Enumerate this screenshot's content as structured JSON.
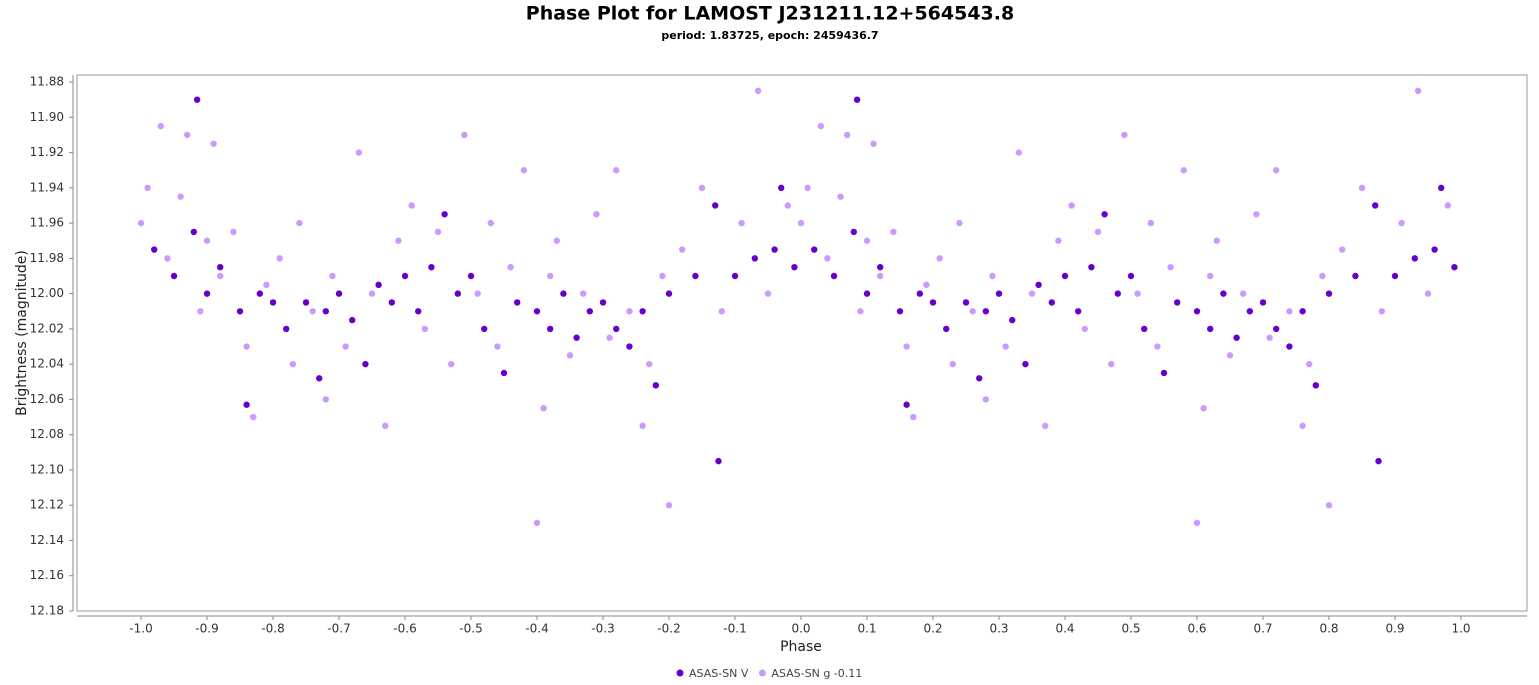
{
  "chart_data": {
    "type": "scatter",
    "title": "Phase Plot for LAMOST J231211.12+564543.8",
    "subtitle": "period: 1.83725, epoch: 2459436.7",
    "x_label": "Phase",
    "y_label": "Brightness (magnitude)",
    "xlim": [
      -1.097,
      1.1
    ],
    "ylim": [
      11.876,
      12.18
    ],
    "y_inverted": true,
    "grid": false,
    "legend_position": "bottom",
    "xticks": [
      {
        "value": -1.0,
        "label": "-1.0"
      },
      -0.9,
      -0.8,
      -0.7,
      -0.6,
      -0.5,
      -0.4,
      -0.3,
      -0.2,
      -0.1,
      {
        "value": 0,
        "label": "0.0"
      },
      0.1,
      0.2,
      0.3,
      0.4,
      0.5,
      0.6,
      0.7,
      0.8,
      0.9,
      {
        "value": 1.0,
        "label": "1.0"
      }
    ],
    "yticks": [
      11.88,
      {
        "value": 11.9,
        "label": "11.90"
      },
      11.92,
      11.94,
      11.96,
      11.98,
      {
        "value": 12.0,
        "label": "12.00"
      },
      12.02,
      12.04,
      12.06,
      12.08,
      {
        "value": 12.1,
        "label": "12.10"
      },
      12.12,
      12.14,
      12.16,
      12.18
    ],
    "series": [
      {
        "name": "ASAS-SN V",
        "color": "#6600cc",
        "x": [
          -0.98,
          -0.95,
          -0.92,
          -0.915,
          -0.9,
          -0.88,
          -0.85,
          -0.84,
          -0.82,
          -0.8,
          -0.78,
          -0.75,
          -0.73,
          -0.72,
          -0.7,
          -0.68,
          -0.66,
          -0.64,
          -0.62,
          -0.6,
          -0.58,
          -0.56,
          -0.54,
          -0.52,
          -0.5,
          -0.48,
          -0.45,
          -0.43,
          -0.4,
          -0.38,
          -0.36,
          -0.34,
          -0.32,
          -0.3,
          -0.28,
          -0.26,
          -0.24,
          -0.22,
          -0.2,
          -0.16,
          -0.125,
          -0.13,
          -0.1,
          -0.07,
          -0.04,
          -0.03,
          -0.01,
          0.02,
          0.05,
          0.08,
          0.085,
          0.1,
          0.12,
          0.15,
          0.16,
          0.18,
          0.2,
          0.22,
          0.25,
          0.27,
          0.28,
          0.3,
          0.32,
          0.34,
          0.36,
          0.38,
          0.4,
          0.42,
          0.44,
          0.46,
          0.48,
          0.5,
          0.52,
          0.55,
          0.57,
          0.6,
          0.62,
          0.64,
          0.66,
          0.68,
          0.7,
          0.72,
          0.74,
          0.76,
          0.78,
          0.8,
          0.84,
          0.875,
          0.87,
          0.9,
          0.93,
          0.96,
          0.97,
          0.99
        ],
        "values": [
          11.975,
          11.99,
          11.965,
          11.89,
          12.0,
          11.985,
          12.01,
          12.063,
          12.0,
          12.005,
          12.02,
          12.005,
          12.048,
          12.01,
          12.0,
          12.015,
          12.04,
          11.995,
          12.005,
          11.99,
          12.01,
          11.985,
          11.955,
          12.0,
          11.99,
          12.02,
          12.045,
          12.005,
          12.01,
          12.02,
          12.0,
          12.025,
          12.01,
          12.005,
          12.02,
          12.03,
          12.01,
          12.052,
          12.0,
          11.99,
          12.095,
          11.95,
          11.99,
          11.98,
          11.975,
          11.94,
          11.985,
          11.975,
          11.99,
          11.965,
          11.89,
          12.0,
          11.985,
          12.01,
          12.063,
          12.0,
          12.005,
          12.02,
          12.005,
          12.048,
          12.01,
          12.0,
          12.015,
          12.04,
          11.995,
          12.005,
          11.99,
          12.01,
          11.985,
          11.955,
          12.0,
          11.99,
          12.02,
          12.045,
          12.005,
          12.01,
          12.02,
          12.0,
          12.025,
          12.01,
          12.005,
          12.02,
          12.03,
          12.01,
          12.052,
          12.0,
          11.99,
          12.095,
          11.95,
          11.99,
          11.98,
          11.975,
          11.94,
          11.985
        ]
      },
      {
        "name": "ASAS-SN g -0.11",
        "color": "#cc99ff",
        "x": [
          -1.0,
          -0.99,
          -0.97,
          -0.96,
          -0.94,
          -0.93,
          -0.91,
          -0.9,
          -0.89,
          -0.88,
          -0.86,
          -0.84,
          -0.83,
          -0.81,
          -0.79,
          -0.77,
          -0.76,
          -0.74,
          -0.72,
          -0.71,
          -0.69,
          -0.67,
          -0.65,
          -0.63,
          -0.61,
          -0.59,
          -0.57,
          -0.55,
          -0.53,
          -0.51,
          -0.49,
          -0.47,
          -0.46,
          -0.44,
          -0.42,
          -0.4,
          -0.39,
          -0.38,
          -0.37,
          -0.35,
          -0.33,
          -0.31,
          -0.29,
          -0.28,
          -0.26,
          -0.24,
          -0.23,
          -0.21,
          -0.2,
          -0.18,
          -0.15,
          -0.12,
          -0.09,
          -0.065,
          -0.05,
          -0.02,
          0.0,
          0.01,
          0.03,
          0.04,
          0.06,
          0.07,
          0.09,
          0.1,
          0.11,
          0.12,
          0.14,
          0.16,
          0.17,
          0.19,
          0.21,
          0.23,
          0.24,
          0.26,
          0.28,
          0.29,
          0.31,
          0.33,
          0.35,
          0.37,
          0.39,
          0.41,
          0.43,
          0.45,
          0.47,
          0.49,
          0.51,
          0.53,
          0.54,
          0.56,
          0.58,
          0.6,
          0.61,
          0.62,
          0.63,
          0.65,
          0.67,
          0.69,
          0.71,
          0.72,
          0.74,
          0.76,
          0.77,
          0.79,
          0.8,
          0.82,
          0.85,
          0.88,
          0.91,
          0.935,
          0.95,
          0.98
        ],
        "values": [
          11.96,
          11.94,
          11.905,
          11.98,
          11.945,
          11.91,
          12.01,
          11.97,
          11.915,
          11.99,
          11.965,
          12.03,
          12.07,
          11.995,
          11.98,
          12.04,
          11.96,
          12.01,
          12.06,
          11.99,
          12.03,
          11.92,
          12.0,
          12.075,
          11.97,
          11.95,
          12.02,
          11.965,
          12.04,
          11.91,
          12.0,
          11.96,
          12.03,
          11.985,
          11.93,
          12.13,
          12.065,
          11.99,
          11.97,
          12.035,
          12.0,
          11.955,
          12.025,
          11.93,
          12.01,
          12.075,
          12.04,
          11.99,
          12.12,
          11.975,
          11.94,
          12.01,
          11.96,
          11.885,
          12.0,
          11.95,
          11.96,
          11.94,
          11.905,
          11.98,
          11.945,
          11.91,
          12.01,
          11.97,
          11.915,
          11.99,
          11.965,
          12.03,
          12.07,
          11.995,
          11.98,
          12.04,
          11.96,
          12.01,
          12.06,
          11.99,
          12.03,
          11.92,
          12.0,
          12.075,
          11.97,
          11.95,
          12.02,
          11.965,
          12.04,
          11.91,
          12.0,
          11.96,
          12.03,
          11.985,
          11.93,
          12.13,
          12.065,
          11.99,
          11.97,
          12.035,
          12.0,
          11.955,
          12.025,
          11.93,
          12.01,
          12.075,
          12.04,
          11.99,
          12.12,
          11.975,
          11.94,
          12.01,
          11.96,
          11.885,
          12.0,
          11.95
        ]
      }
    ]
  }
}
